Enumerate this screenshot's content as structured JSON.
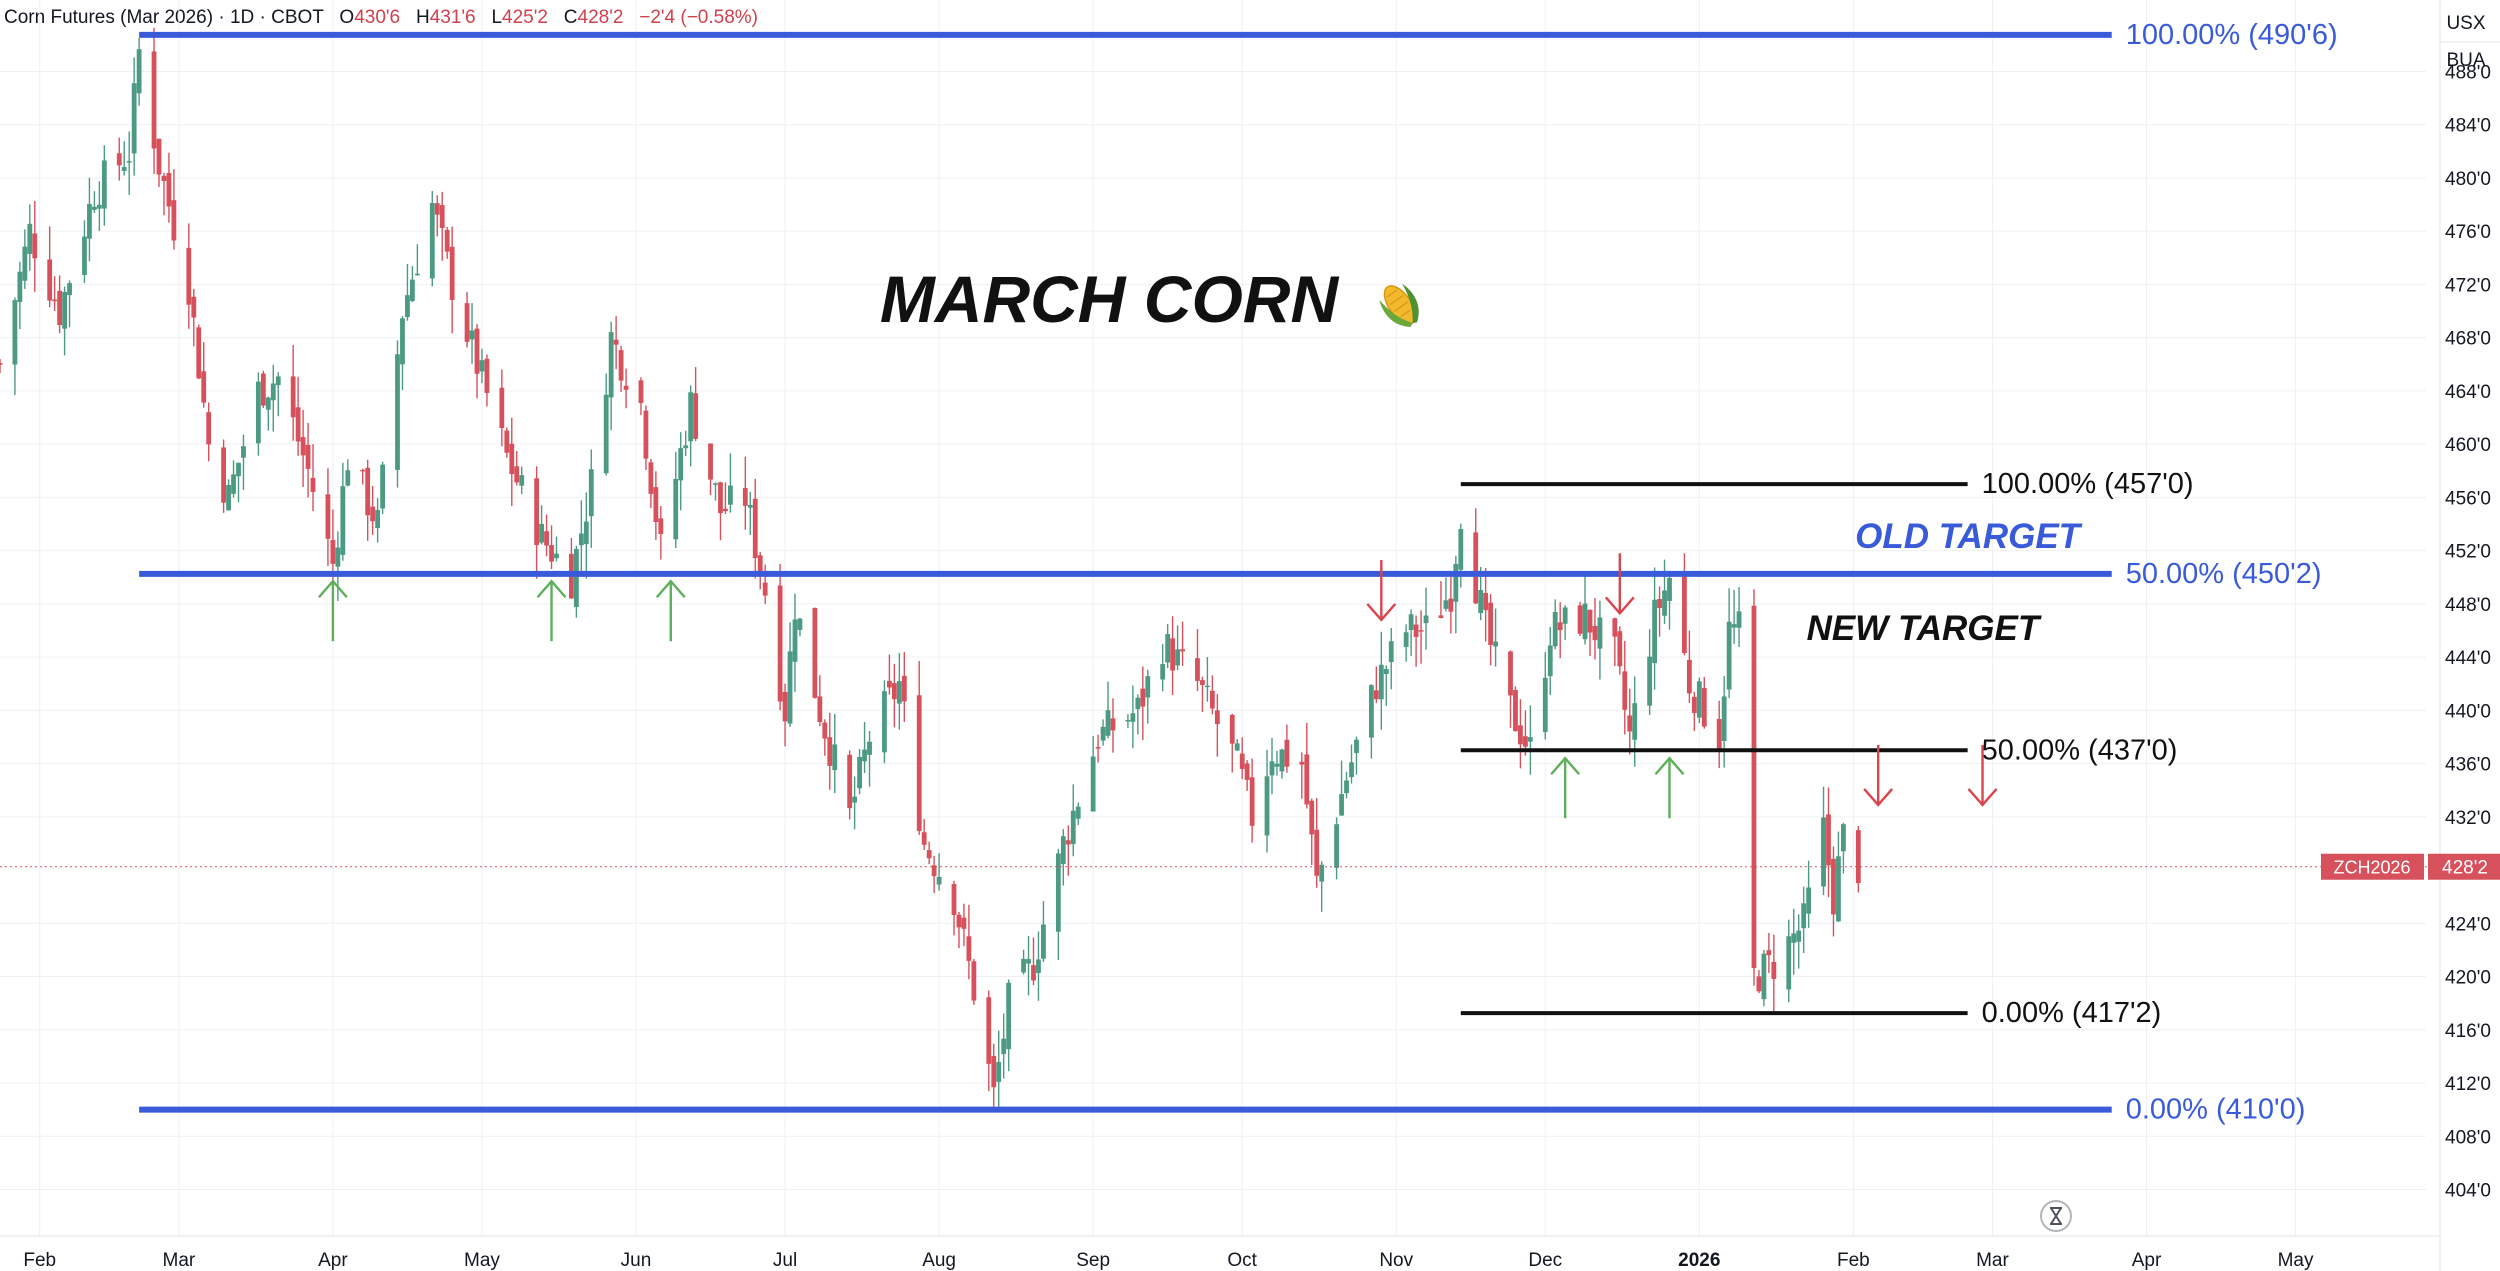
{
  "header": {
    "symbol_text": "Corn Futures (Mar 2026) · 1D · CBOT",
    "open_label": "O",
    "open": "430'6",
    "high_label": "H",
    "high": "431'6",
    "low_label": "L",
    "low": "425'2",
    "close_label": "C",
    "close": "428'2",
    "change": "−2'4 (−0.58%)"
  },
  "axis_top": {
    "currency": "USX",
    "unit": "BUA"
  },
  "price_tag": {
    "symbol": "ZCH2026",
    "price": "428'2"
  },
  "colors": {
    "up": "#4c9a83",
    "down": "#d6515c",
    "blue": "#3a5bd9",
    "green_arrow": "#5fae5a",
    "red_arrow": "#d9454d",
    "grid": "#eef0f3"
  },
  "chart_data": {
    "type": "candlestick",
    "title": "MARCH CORN",
    "title_icon": "corn-emoji-icon",
    "y_range": [
      402,
      492
    ],
    "y_ticks": [
      {
        "value": 488,
        "label": "488'0"
      },
      {
        "value": 484,
        "label": "484'0"
      },
      {
        "value": 480,
        "label": "480'0"
      },
      {
        "value": 476,
        "label": "476'0"
      },
      {
        "value": 472,
        "label": "472'0"
      },
      {
        "value": 468,
        "label": "468'0"
      },
      {
        "value": 464,
        "label": "464'0"
      },
      {
        "value": 460,
        "label": "460'0"
      },
      {
        "value": 456,
        "label": "456'0"
      },
      {
        "value": 452,
        "label": "452'0"
      },
      {
        "value": 448,
        "label": "448'0"
      },
      {
        "value": 444,
        "label": "444'0"
      },
      {
        "value": 440,
        "label": "440'0"
      },
      {
        "value": 436,
        "label": "436'0"
      },
      {
        "value": 432,
        "label": "432'0"
      },
      {
        "value": 424,
        "label": "424'0"
      },
      {
        "value": 420,
        "label": "420'0"
      },
      {
        "value": 416,
        "label": "416'0"
      },
      {
        "value": 412,
        "label": "412'0"
      },
      {
        "value": 408,
        "label": "408'0"
      },
      {
        "value": 404,
        "label": "404'0"
      }
    ],
    "x_range": [
      "2025-01-24",
      "2026-05-19"
    ],
    "x_ticks": [
      {
        "date": "2025-02-01",
        "label": "Feb"
      },
      {
        "date": "2025-03-01",
        "label": "Mar"
      },
      {
        "date": "2025-04-01",
        "label": "Apr"
      },
      {
        "date": "2025-05-01",
        "label": "May"
      },
      {
        "date": "2025-06-01",
        "label": "Jun"
      },
      {
        "date": "2025-07-01",
        "label": "Jul"
      },
      {
        "date": "2025-08-01",
        "label": "Aug"
      },
      {
        "date": "2025-09-01",
        "label": "Sep"
      },
      {
        "date": "2025-10-01",
        "label": "Oct"
      },
      {
        "date": "2025-11-01",
        "label": "Nov"
      },
      {
        "date": "2025-12-01",
        "label": "Dec"
      },
      {
        "date": "2026-01-01",
        "label": "2026",
        "bold": true
      },
      {
        "date": "2026-02-01",
        "label": "Feb"
      },
      {
        "date": "2026-03-01",
        "label": "Mar"
      },
      {
        "date": "2026-04-01",
        "label": "Apr"
      },
      {
        "date": "2026-05-01",
        "label": "May"
      }
    ],
    "price_anchors": [
      [
        "2025-01-24",
        466
      ],
      [
        "2025-01-30",
        476
      ],
      [
        "2025-02-05",
        470
      ],
      [
        "2025-02-12",
        479
      ],
      [
        "2025-02-19",
        482
      ],
      [
        "2025-02-21",
        489.5
      ],
      [
        "2025-02-25",
        481
      ],
      [
        "2025-03-03",
        472
      ],
      [
        "2025-03-07",
        460
      ],
      [
        "2025-03-11",
        456
      ],
      [
        "2025-03-17",
        464
      ],
      [
        "2025-03-21",
        465
      ],
      [
        "2025-03-27",
        458
      ],
      [
        "2025-04-01",
        451
      ],
      [
        "2025-04-04",
        459
      ],
      [
        "2025-04-10",
        454
      ],
      [
        "2025-04-15",
        470
      ],
      [
        "2025-04-21",
        478
      ],
      [
        "2025-04-25",
        472
      ],
      [
        "2025-04-30",
        466
      ],
      [
        "2025-05-06",
        459
      ],
      [
        "2025-05-13",
        453
      ],
      [
        "2025-05-19",
        450
      ],
      [
        "2025-05-23",
        457
      ],
      [
        "2025-05-27",
        468
      ],
      [
        "2025-06-02",
        463
      ],
      [
        "2025-06-06",
        452
      ],
      [
        "2025-06-12",
        463
      ],
      [
        "2025-06-18",
        455
      ],
      [
        "2025-06-23",
        456
      ],
      [
        "2025-06-27",
        449
      ],
      [
        "2025-07-01",
        440
      ],
      [
        "2025-07-03",
        448
      ],
      [
        "2025-07-08",
        440
      ],
      [
        "2025-07-14",
        432
      ],
      [
        "2025-07-18",
        438
      ],
      [
        "2025-07-24",
        442
      ],
      [
        "2025-07-29",
        430
      ],
      [
        "2025-08-04",
        426
      ],
      [
        "2025-08-08",
        419
      ],
      [
        "2025-08-12",
        411
      ],
      [
        "2025-08-15",
        418
      ],
      [
        "2025-08-20",
        421
      ],
      [
        "2025-08-26",
        430
      ],
      [
        "2025-09-02",
        438
      ],
      [
        "2025-09-10",
        440
      ],
      [
        "2025-09-15",
        445
      ],
      [
        "2025-09-22",
        442
      ],
      [
        "2025-09-30",
        436
      ],
      [
        "2025-10-03",
        432
      ],
      [
        "2025-10-07",
        437
      ],
      [
        "2025-10-13",
        436
      ],
      [
        "2025-10-16",
        427
      ],
      [
        "2025-10-22",
        435
      ],
      [
        "2025-10-28",
        442
      ],
      [
        "2025-11-03",
        446
      ],
      [
        "2025-11-07",
        446
      ],
      [
        "2025-11-12",
        449
      ],
      [
        "2025-11-14",
        455
      ],
      [
        "2025-11-19",
        446
      ],
      [
        "2025-11-24",
        440
      ],
      [
        "2025-11-28",
        437
      ],
      [
        "2025-12-02",
        446
      ],
      [
        "2025-12-09",
        447
      ],
      [
        "2025-12-15",
        444
      ],
      [
        "2025-12-18",
        438
      ],
      [
        "2025-12-23",
        447
      ],
      [
        "2025-12-26",
        450
      ],
      [
        "2025-12-30",
        442
      ],
      [
        "2026-01-05",
        438
      ],
      [
        "2026-01-07",
        446
      ],
      [
        "2026-01-09",
        446
      ],
      [
        "2026-01-12",
        420
      ],
      [
        "2026-01-16",
        421
      ],
      [
        "2026-01-22",
        424
      ],
      [
        "2026-01-26",
        431
      ],
      [
        "2026-01-28",
        426
      ],
      [
        "2026-01-30",
        430.5
      ],
      [
        "2026-02-02",
        428.25
      ]
    ],
    "blue_fib": {
      "start": "2025-02-21",
      "end": "2026-03-25",
      "levels": [
        {
          "value": 490.75,
          "label": "100.00% (490'6)"
        },
        {
          "value": 450.25,
          "label": "50.00% (450'2)"
        },
        {
          "value": 410,
          "label": "0.00% (410'0)"
        }
      ]
    },
    "black_fib": {
      "start": "2025-11-14",
      "end": "2026-02-24",
      "levels": [
        {
          "value": 457,
          "label": "100.00% (457'0)"
        },
        {
          "value": 437,
          "label": "50.00% (437'0)"
        },
        {
          "value": 417.25,
          "label": "0.00% (417'2)"
        }
      ]
    },
    "annotations": [
      {
        "text": "OLD TARGET",
        "date": "2026-02-24",
        "value": 452.2,
        "style": "blue"
      },
      {
        "text": "NEW TARGET",
        "date": "2026-02-15",
        "value": 445.3,
        "style": "black"
      }
    ],
    "up_arrows": [
      {
        "date": "2025-04-01",
        "value": 449.7
      },
      {
        "date": "2025-05-15",
        "value": 449.7
      },
      {
        "date": "2025-06-08",
        "value": 449.7
      },
      {
        "date": "2025-12-05",
        "value": 436.4
      },
      {
        "date": "2025-12-26",
        "value": 436.4
      }
    ],
    "down_arrows": [
      {
        "date": "2025-10-29",
        "value": 451.3
      },
      {
        "date": "2025-12-16",
        "value": 451.8
      },
      {
        "date": "2026-02-06",
        "value": 437.4
      },
      {
        "date": "2026-02-27",
        "value": 437.4
      }
    ]
  }
}
